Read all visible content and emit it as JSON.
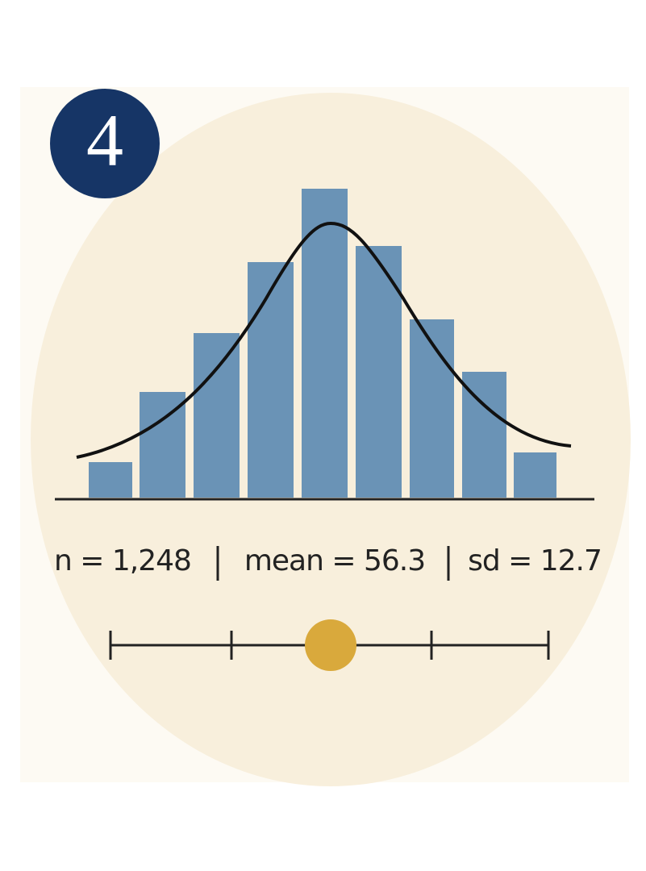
{
  "badge": "4",
  "stats": {
    "n": "n = 1,248",
    "mean": "mean = 56.3",
    "sd": "sd = 12.7"
  }
}
